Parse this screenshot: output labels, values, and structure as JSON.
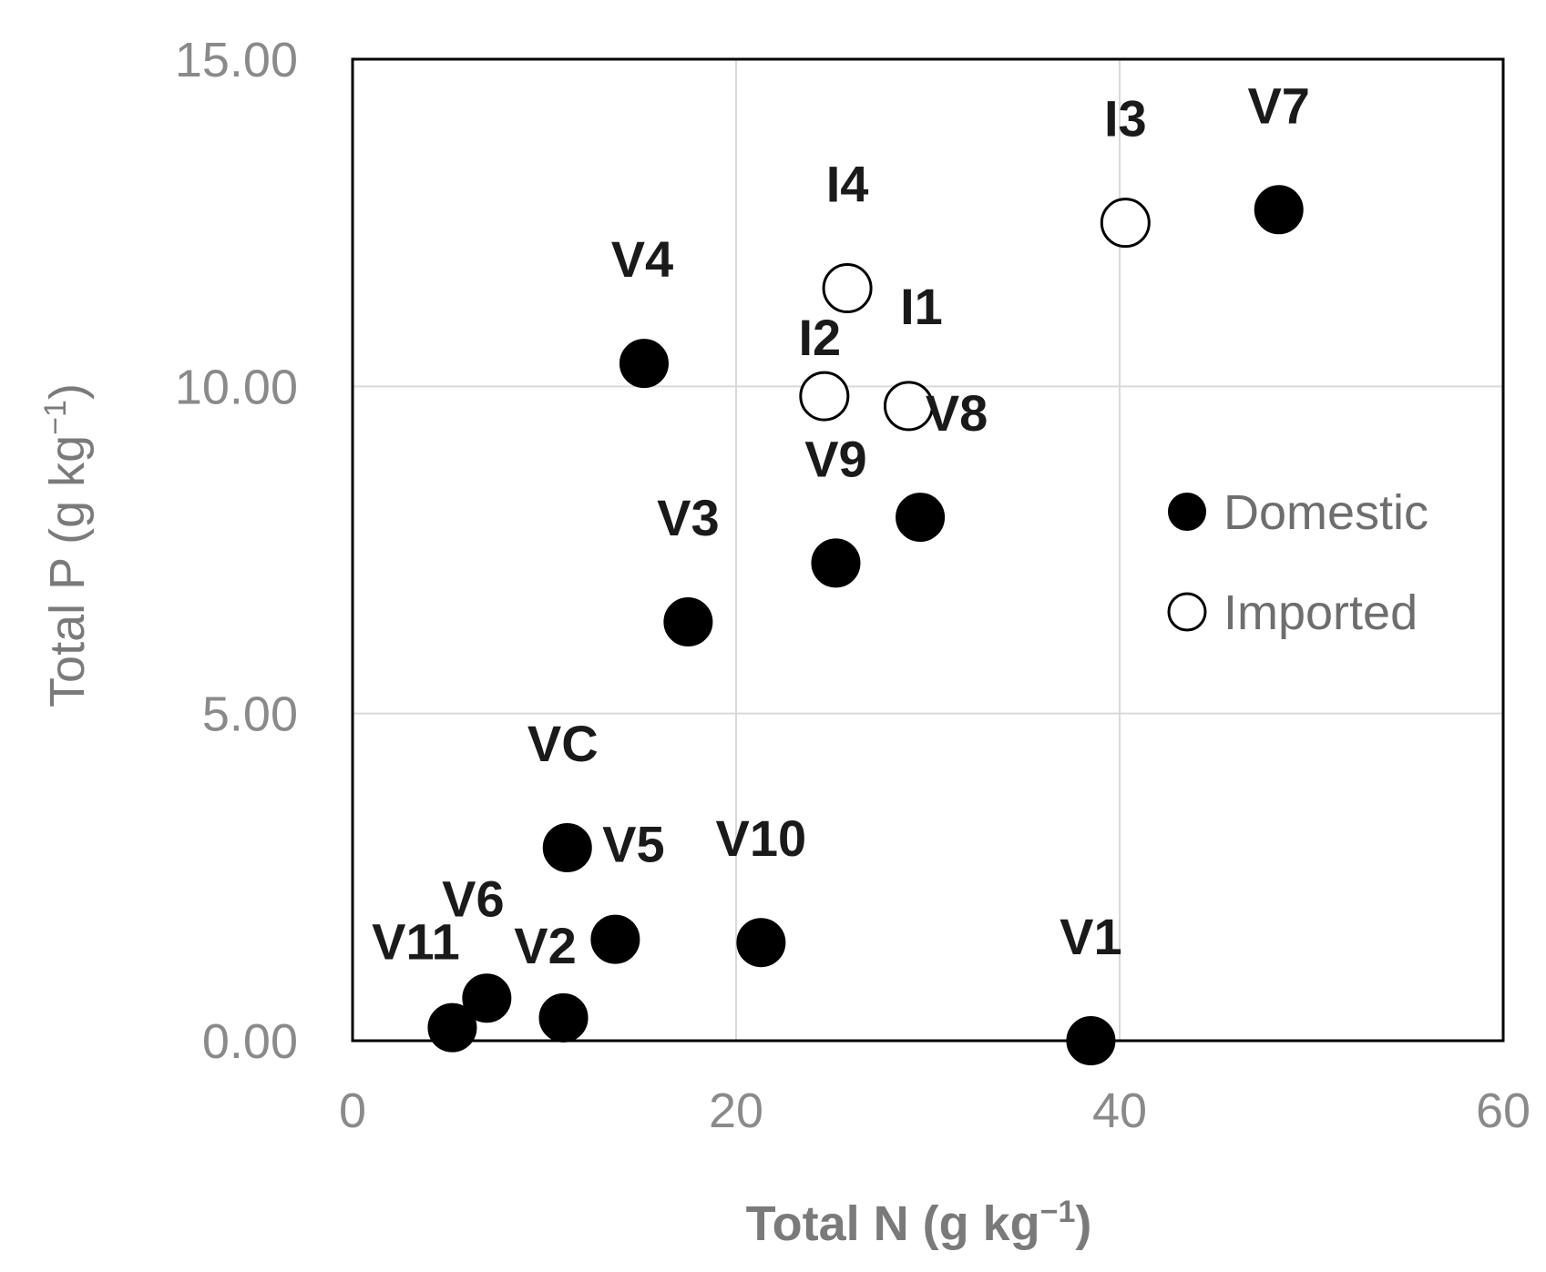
{
  "chart_data": {
    "type": "scatter",
    "xlabel": "Total N (g kg",
    "xlabel_sup": "−1",
    "xlabel_end": ")",
    "ylabel": "Total P (g kg",
    "ylabel_sup": "−1",
    "ylabel_end": ")",
    "xlim": [
      0,
      60
    ],
    "ylim": [
      0,
      15
    ],
    "xticks": [
      0,
      20,
      40,
      60
    ],
    "xtick_labels": [
      "0",
      "20",
      "40",
      "60"
    ],
    "yticks": [
      0,
      5,
      10,
      15
    ],
    "ytick_labels": [
      "0.00",
      "5.00",
      "10.00",
      "15.00"
    ],
    "grid": true,
    "legend_position": "right",
    "colors": {
      "domestic": "#000000",
      "imported_fill": "#ffffff",
      "imported_stroke": "#000000",
      "grid": "#d9d9d9",
      "frame": "#000000"
    },
    "series": [
      {
        "name": "Domestic",
        "filled": true,
        "points": [
          {
            "label": "V1",
            "x": 38.5,
            "y": 0.0
          },
          {
            "label": "V2",
            "x": 11.0,
            "y": 0.35
          },
          {
            "label": "V3",
            "x": 17.5,
            "y": 6.4
          },
          {
            "label": "V4",
            "x": 15.2,
            "y": 10.35
          },
          {
            "label": "V5",
            "x": 13.7,
            "y": 1.55
          },
          {
            "label": "V6",
            "x": 7.0,
            "y": 0.65
          },
          {
            "label": "V7",
            "x": 48.3,
            "y": 12.7
          },
          {
            "label": "V8",
            "x": 29.6,
            "y": 8.0
          },
          {
            "label": "V9",
            "x": 25.2,
            "y": 7.3
          },
          {
            "label": "V10",
            "x": 21.3,
            "y": 1.5
          },
          {
            "label": "V11",
            "x": 5.2,
            "y": 0.2
          },
          {
            "label": "VC",
            "x": 11.2,
            "y": 2.95
          }
        ]
      },
      {
        "name": "Imported",
        "filled": false,
        "points": [
          {
            "label": "I1",
            "x": 29.0,
            "y": 9.7
          },
          {
            "label": "I2",
            "x": 24.6,
            "y": 9.85
          },
          {
            "label": "I3",
            "x": 40.3,
            "y": 12.5
          },
          {
            "label": "I4",
            "x": 25.8,
            "y": 11.5
          }
        ]
      }
    ]
  }
}
